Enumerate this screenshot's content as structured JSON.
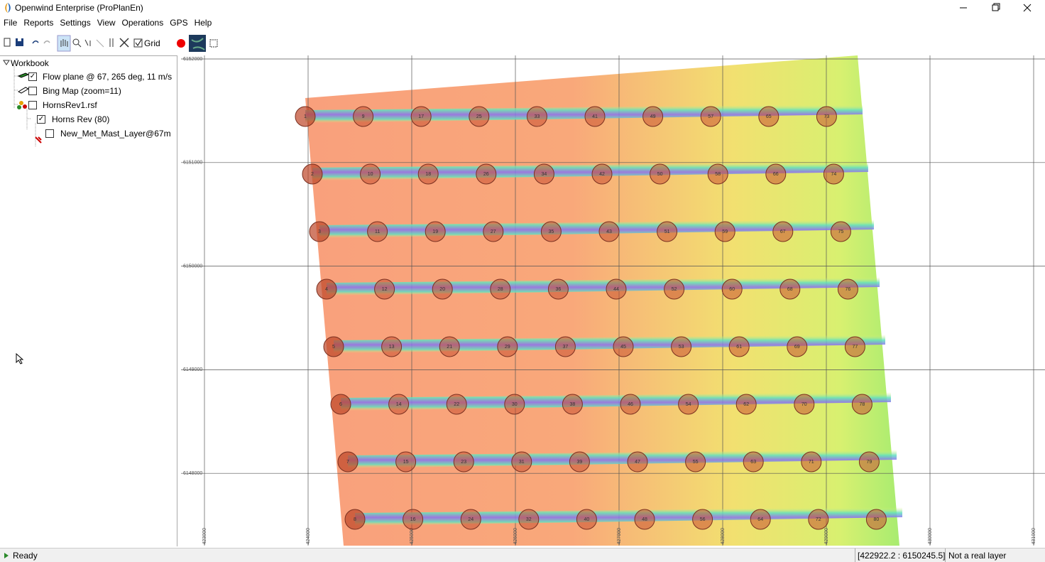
{
  "window": {
    "title": "Openwind Enterprise (ProPlanEn)"
  },
  "menu": [
    "File",
    "Reports",
    "Settings",
    "View",
    "Operations",
    "GPS",
    "Help"
  ],
  "toolbar": {
    "grid_label": "Grid"
  },
  "tree": {
    "root": "Workbook",
    "items": [
      "Flow plane @ 67, 265 deg, 11 m/s",
      "Bing Map (zoom=11)",
      "HornsRev1.rsf",
      "Horns Rev (80)",
      "New_Met_Mast_Layer@67m"
    ]
  },
  "map": {
    "y_labels": [
      6152000,
      6151000,
      6150000,
      6149000,
      6148000
    ],
    "x_labels": [
      423000,
      424000,
      425000,
      426000,
      427000,
      428000,
      429000,
      430000,
      431000
    ],
    "turbines": [
      1,
      2,
      3,
      4,
      5,
      6,
      7,
      8,
      9,
      10,
      11,
      12,
      13,
      14,
      15,
      16,
      17,
      18,
      19,
      20,
      21,
      22,
      23,
      24,
      25,
      26,
      27,
      28,
      29,
      30,
      31,
      32,
      33,
      34,
      35,
      36,
      37,
      38,
      39,
      40,
      41,
      42,
      43,
      44,
      45,
      46,
      47,
      48,
      49,
      50,
      51,
      52,
      53,
      54,
      55,
      56,
      57,
      58,
      59,
      60,
      61,
      62,
      63,
      64,
      65,
      66,
      67,
      68,
      69,
      70,
      71,
      72,
      73,
      74,
      75,
      76,
      77,
      78,
      79,
      80
    ]
  },
  "status": {
    "state": "Ready",
    "coords": "[422922.2 : 6150245.5]",
    "layer": "Not a real layer"
  }
}
